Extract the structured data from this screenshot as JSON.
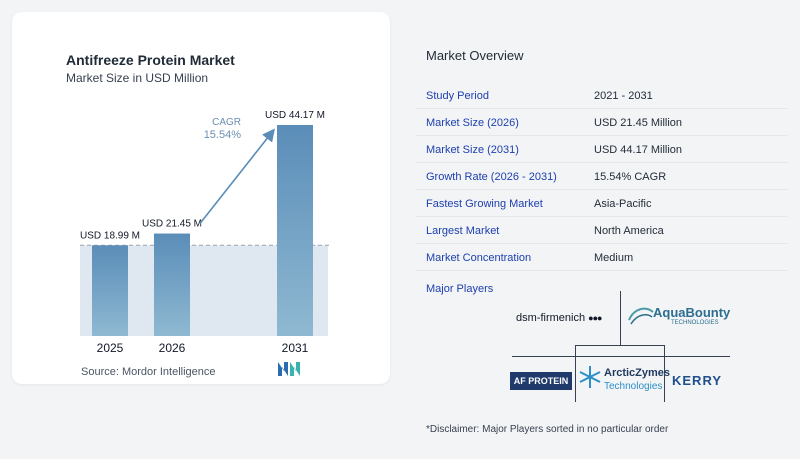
{
  "chart": {
    "title": "Antifreeze Protein Market",
    "subtitle": "Market Size in USD Million",
    "source": "Source:  Mordor Intelligence",
    "cagr_label": "CAGR",
    "cagr_value": "15.54%"
  },
  "chart_data": {
    "type": "bar",
    "title": "Antifreeze Protein Market",
    "subtitle": "Market Size in USD Million",
    "categories": [
      "2025",
      "2026",
      "2031"
    ],
    "values": [
      18.99,
      21.45,
      44.17
    ],
    "data_labels": [
      "USD 18.99 M",
      "USD 21.45 M",
      "USD 44.17 M"
    ],
    "unit": "USD Million",
    "annotation": "CAGR 15.54%",
    "colors": {
      "bar_top": "#5a8db8",
      "bar_bottom": "#8fb9d2",
      "band": "#dfe8f1",
      "arrow": "#5a8db8"
    },
    "grid": false
  },
  "overview": {
    "title": "Market Overview",
    "rows": [
      {
        "label": "Study Period",
        "value": "2021 - 2031"
      },
      {
        "label": "Market Size (2026)",
        "value": "USD 21.45 Million"
      },
      {
        "label": "Market Size (2031)",
        "value": "USD 44.17 Million"
      },
      {
        "label": "Growth Rate (2026 - 2031)",
        "value": "15.54% CAGR"
      },
      {
        "label": "Fastest Growing Market",
        "value": "Asia-Pacific"
      },
      {
        "label": "Largest Market",
        "value": "North America"
      },
      {
        "label": "Market Concentration",
        "value": "Medium"
      }
    ]
  },
  "players": {
    "title": "Major Players",
    "logos": {
      "dsm": "dsm-firmenich",
      "aquabounty": "AquaBounty",
      "aquabounty_sub": "TECHNOLOGIES",
      "afprotein": "AF PROTEIN",
      "arcticzymes": "ArcticZymes",
      "arcticzymes_sub": "Technologies",
      "kerry": "KERRY"
    }
  },
  "disclaimer": "*Disclaimer: Major Players sorted in no particular order"
}
